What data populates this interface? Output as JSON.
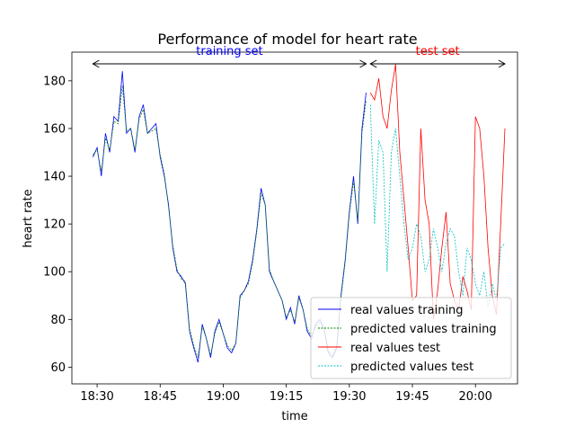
{
  "chart_data": {
    "type": "line",
    "title": "Performance of model for heart rate",
    "xlabel": "time",
    "ylabel": "heart rate",
    "xlim": [
      "18:24",
      "20:10"
    ],
    "ylim": [
      53,
      192
    ],
    "x_ticks": [
      "18:30",
      "18:45",
      "19:00",
      "19:15",
      "19:30",
      "19:45",
      "20:00"
    ],
    "y_ticks": [
      60,
      80,
      100,
      120,
      140,
      160,
      180
    ],
    "grid": false,
    "legend_position": "lower right",
    "colors": {
      "real_training": "#0000ff",
      "predicted_training": "#008000",
      "real_test": "#ff0000",
      "predicted_test": "#00bfbf"
    },
    "annotations": [
      {
        "text": "training set",
        "color": "#0000ff",
        "from": "18:29",
        "to": "19:34"
      },
      {
        "text": "test set",
        "color": "#ff0000",
        "from": "19:35",
        "to": "20:07"
      }
    ],
    "series": [
      {
        "name": "real values training",
        "style": "solid",
        "x": [
          "18:29",
          "18:30",
          "18:31",
          "18:32",
          "18:33",
          "18:34",
          "18:35",
          "18:36",
          "18:37",
          "18:38",
          "18:39",
          "18:40",
          "18:41",
          "18:42",
          "18:43",
          "18:44",
          "18:45",
          "18:46",
          "18:47",
          "18:48",
          "18:49",
          "18:50",
          "18:51",
          "18:52",
          "18:53",
          "18:54",
          "18:55",
          "18:56",
          "18:57",
          "18:58",
          "18:59",
          "19:00",
          "19:01",
          "19:02",
          "19:03",
          "19:04",
          "19:05",
          "19:06",
          "19:07",
          "19:08",
          "19:09",
          "19:10",
          "19:11",
          "19:12",
          "19:13",
          "19:14",
          "19:15",
          "19:16",
          "19:17",
          "19:18",
          "19:19",
          "19:20",
          "19:21",
          "19:22",
          "19:23",
          "19:24",
          "19:25",
          "19:26",
          "19:27",
          "19:28",
          "19:29",
          "19:30",
          "19:31",
          "19:32",
          "19:33",
          "19:34"
        ],
        "y": [
          148,
          152,
          140,
          158,
          150,
          165,
          163,
          184,
          158,
          160,
          150,
          165,
          170,
          158,
          160,
          162,
          148,
          140,
          128,
          110,
          100,
          98,
          95,
          75,
          68,
          62,
          78,
          72,
          64,
          75,
          80,
          74,
          68,
          66,
          70,
          90,
          92,
          96,
          105,
          118,
          135,
          128,
          100,
          96,
          92,
          88,
          80,
          85,
          78,
          90,
          84,
          75,
          72,
          78,
          80,
          76,
          66,
          64,
          68,
          90,
          105,
          125,
          140,
          120,
          160,
          175
        ]
      },
      {
        "name": "predicted values training",
        "style": "dashed",
        "x": [
          "18:29",
          "18:30",
          "18:31",
          "18:32",
          "18:33",
          "18:34",
          "18:35",
          "18:36",
          "18:37",
          "18:38",
          "18:39",
          "18:40",
          "18:41",
          "18:42",
          "18:43",
          "18:44",
          "18:45",
          "18:46",
          "18:47",
          "18:48",
          "18:49",
          "18:50",
          "18:51",
          "18:52",
          "18:53",
          "18:54",
          "18:55",
          "18:56",
          "18:57",
          "18:58",
          "18:59",
          "19:00",
          "19:01",
          "19:02",
          "19:03",
          "19:04",
          "19:05",
          "19:06",
          "19:07",
          "19:08",
          "19:09",
          "19:10",
          "19:11",
          "19:12",
          "19:13",
          "19:14",
          "19:15",
          "19:16",
          "19:17",
          "19:18",
          "19:19",
          "19:20",
          "19:21",
          "19:22",
          "19:23",
          "19:24",
          "19:25",
          "19:26",
          "19:27",
          "19:28",
          "19:29",
          "19:30",
          "19:31",
          "19:32",
          "19:33",
          "19:34"
        ],
        "y": [
          149,
          151,
          142,
          156,
          151,
          163,
          162,
          178,
          159,
          160,
          151,
          164,
          168,
          158,
          159,
          160,
          149,
          141,
          127,
          111,
          101,
          97,
          96,
          76,
          69,
          64,
          77,
          72,
          65,
          74,
          79,
          74,
          69,
          67,
          70,
          89,
          92,
          95,
          104,
          117,
          133,
          128,
          101,
          96,
          92,
          88,
          81,
          84,
          79,
          89,
          84,
          76,
          73,
          77,
          79,
          76,
          67,
          65,
          69,
          89,
          104,
          124,
          138,
          121,
          158,
          172
        ]
      },
      {
        "name": "real values test",
        "style": "solid",
        "x": [
          "19:35",
          "19:36",
          "19:37",
          "19:38",
          "19:39",
          "19:40",
          "19:41",
          "19:42",
          "19:43",
          "19:44",
          "19:45",
          "19:46",
          "19:47",
          "19:48",
          "19:49",
          "19:50",
          "19:51",
          "19:52",
          "19:53",
          "19:54",
          "19:55",
          "19:56",
          "19:57",
          "19:58",
          "19:59",
          "20:00",
          "20:01",
          "20:02",
          "20:03",
          "20:04",
          "20:05",
          "20:06",
          "20:07"
        ],
        "y": [
          175,
          172,
          181,
          165,
          160,
          176,
          187,
          150,
          130,
          110,
          88,
          90,
          160,
          130,
          120,
          80,
          92,
          110,
          125,
          95,
          88,
          84,
          98,
          92,
          84,
          165,
          160,
          140,
          110,
          90,
          82,
          120,
          160
        ]
      },
      {
        "name": "predicted values test",
        "style": "dashed",
        "x": [
          "19:35",
          "19:36",
          "19:37",
          "19:38",
          "19:39",
          "19:40",
          "19:41",
          "19:42",
          "19:43",
          "19:44",
          "19:45",
          "19:46",
          "19:47",
          "19:48",
          "19:49",
          "19:50",
          "19:51",
          "19:52",
          "19:53",
          "19:54",
          "19:55",
          "19:56",
          "19:57",
          "19:58",
          "19:59",
          "20:00",
          "20:01",
          "20:02",
          "20:03",
          "20:04",
          "20:05",
          "20:06",
          "20:07"
        ],
        "y": [
          170,
          120,
          155,
          150,
          100,
          150,
          160,
          140,
          120,
          105,
          110,
          120,
          115,
          100,
          105,
          118,
          110,
          100,
          112,
          118,
          115,
          100,
          90,
          110,
          105,
          95,
          90,
          100,
          85,
          95,
          88,
          110,
          112
        ]
      }
    ]
  }
}
